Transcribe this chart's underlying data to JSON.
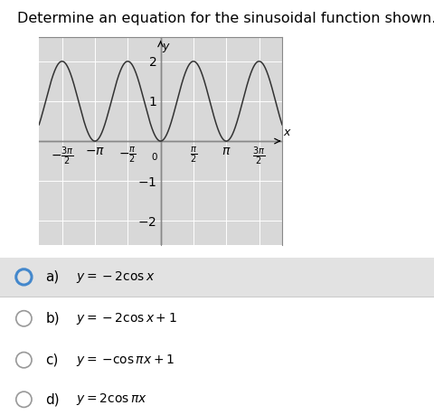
{
  "title": "Determine an equation for the sinusoidal function shown.",
  "title_fontsize": 11.5,
  "graph": {
    "xlim_pi": [
      -1.85,
      1.85
    ],
    "ylim": [
      -2.6,
      2.6
    ],
    "x_ticks_pi": [
      -1.5,
      -1.0,
      -0.5,
      0.5,
      1.0,
      1.5
    ],
    "y_ticks": [
      -2,
      -1,
      1,
      2
    ],
    "bg_color": "#d8d8d8",
    "grid_color": "#ffffff",
    "line_color": "#333333",
    "border_color": "#888888"
  },
  "options": [
    {
      "label": "a)",
      "formula_parts": [
        "y",
        " = −2 cos x"
      ],
      "selected": true
    },
    {
      "label": "b)",
      "formula_parts": [
        "y",
        " = −2 cos x + 1"
      ],
      "selected": false
    },
    {
      "label": "c)",
      "formula_parts": [
        "y",
        " = −cos πx + 1"
      ],
      "selected": false
    },
    {
      "label": "d)",
      "formula_parts": [
        "y",
        " = 2 cos πx"
      ],
      "selected": false
    }
  ],
  "option_a_bg": "#e2e2e2",
  "option_bg": "#ffffff",
  "circle_selected_color": "#4488cc",
  "circle_unselected_color": "#999999",
  "fig_bg": "#ffffff"
}
